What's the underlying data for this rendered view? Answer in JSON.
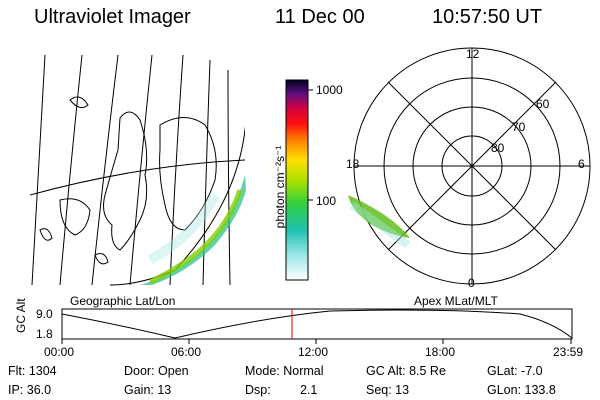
{
  "header": {
    "instrument": "Ultraviolet Imager",
    "date": "11 Dec 00",
    "time": "10:57:50 UT"
  },
  "colorbar": {
    "ticks": [
      "1000",
      "100"
    ],
    "unit_label": "photon cm⁻²s⁻¹"
  },
  "geo_panel": {
    "label": "Geographic Lat/Lon"
  },
  "polar_panel": {
    "label": "Apex MLat/MLT",
    "mlt_labels": [
      "12",
      "18",
      "6",
      "0"
    ],
    "lat_labels": [
      "60",
      "70",
      "80"
    ]
  },
  "timeline": {
    "ylabel": "GC Alt",
    "ytick_top": "9.0",
    "ytick_bottom": "1.8",
    "xticks": [
      "00:00",
      "06:00",
      "12:00",
      "18:00",
      "23:59"
    ],
    "current_time_marker": "10:57:50"
  },
  "info": {
    "flt": "Flt: 1304",
    "ip": "IP: 36.0",
    "door": "Door: Open",
    "gain": "Gain: 13",
    "mode": "Mode: Normal",
    "dsp_label": "Dsp:",
    "dsp_value": "2.1",
    "gcalt": "GC Alt: 8.5 Re",
    "seq": "Seq: 13",
    "glat": "GLat:  -7.0",
    "glon": "GLon: 133.8"
  }
}
